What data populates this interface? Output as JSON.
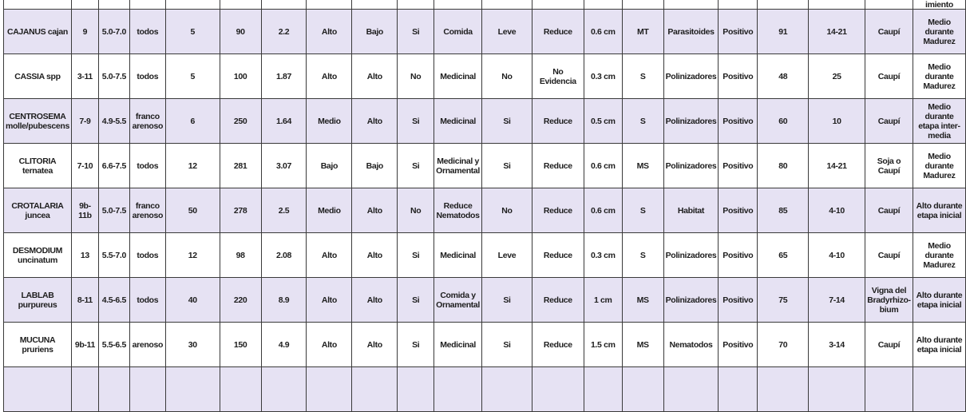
{
  "table": {
    "top_fragment": "imiento",
    "shade_color": "#e6e2f3",
    "rows": [
      [
        "CAJANUS cajan",
        "9",
        "5.0-7.0",
        "todos",
        "5",
        "90",
        "2.2",
        "Alto",
        "Bajo",
        "Si",
        "Comida",
        "Leve",
        "Reduce",
        "0.6 cm",
        "MT",
        "Parasitoides",
        "Positivo",
        "91",
        "14-21",
        "Caupí",
        "Medio durante Madurez"
      ],
      [
        "CASSIA spp",
        "3-11",
        "5.0-7.5",
        "todos",
        "5",
        "100",
        "1.87",
        "Alto",
        "Alto",
        "No",
        "Medicinal",
        "No",
        "No Evidencia",
        "0.3 cm",
        "S",
        "Polinizadores",
        "Positivo",
        "48",
        "25",
        "Caupí",
        "Medio durante Madurez"
      ],
      [
        "CENTROSEMA molle/pubescens",
        "7-9",
        "4.9-5.5",
        "franco arenoso",
        "6",
        "250",
        "1.64",
        "Medio",
        "Alto",
        "Si",
        "Medicinal",
        "Si",
        "Reduce",
        "0.5 cm",
        "S",
        "Polinizadores",
        "Positivo",
        "60",
        "10",
        "Caupí",
        "Medio durante etapa inter-media"
      ],
      [
        "CLITORIA ternatea",
        "7-10",
        "6.6-7.5",
        "todos",
        "12",
        "281",
        "3.07",
        "Bajo",
        "Bajo",
        "Si",
        "Medicinal y Ornamental",
        "Si",
        "Reduce",
        "0.6 cm",
        "MS",
        "Polinizadores",
        "Positivo",
        "80",
        "14-21",
        "Soja o Caupí",
        "Medio durante Madurez"
      ],
      [
        "CROTALARIA juncea",
        "9b-11b",
        "5.0-7.5",
        "franco arenoso",
        "50",
        "278",
        "2.5",
        "Medio",
        "Alto",
        "No",
        "Reduce Nematodos",
        "No",
        "Reduce",
        "0.6 cm",
        "S",
        "Habitat",
        "Positivo",
        "85",
        "4-10",
        "Caupí",
        "Alto durante etapa inicial"
      ],
      [
        "DESMODIUM uncinatum",
        "13",
        "5.5-7.0",
        "todos",
        "12",
        "98",
        "2.08",
        "Alto",
        "Alto",
        "Si",
        "Medicinal",
        "Leve",
        "Reduce",
        "0.3 cm",
        "S",
        "Polinizadores",
        "Positivo",
        "65",
        "4-10",
        "Caupí",
        "Medio durante Madurez"
      ],
      [
        "LABLAB purpureus",
        "8-11",
        "4.5-6.5",
        "todos",
        "40",
        "220",
        "8.9",
        "Alto",
        "Alto",
        "Si",
        "Comida y Ornamental",
        "Si",
        "Reduce",
        "1 cm",
        "MS",
        "Polinizadores",
        "Positivo",
        "75",
        "7-14",
        "Vigna del Bradyrhizo-bium",
        "Alto durante etapa inicial"
      ],
      [
        "MUCUNA pruriens",
        "9b-11",
        "5.5-6.5",
        "arenoso",
        "30",
        "150",
        "4.9",
        "Alto",
        "Alto",
        "Si",
        "Medicinal",
        "Si",
        "Reduce",
        "1.5 cm",
        "MS",
        "Nematodos",
        "Positivo",
        "70",
        "3-14",
        "Caupí",
        "Alto durante etapa inicial"
      ]
    ]
  }
}
